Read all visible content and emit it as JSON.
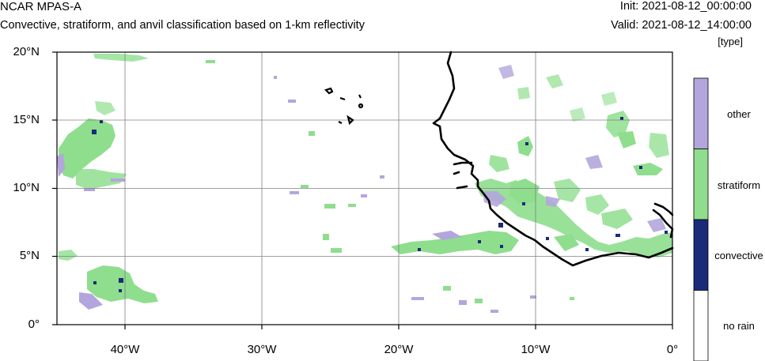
{
  "header": {
    "title": "NCAR MPAS-A",
    "subtitle": "Convective, stratiform, and anvil classification based on 1-km reflectivity",
    "init": "Init: 2021-08-12_00:00:00",
    "valid": "Valid: 2021-08-12_14:00:00",
    "units": "[type]"
  },
  "axes": {
    "lat_labels": [
      "20°N",
      "15°N",
      "10°N",
      "5°N",
      "0°"
    ],
    "lon_labels": [
      "40°W",
      "30°W",
      "20°W",
      "10°W",
      "0°"
    ]
  },
  "colorbar": {
    "classes": [
      {
        "label": "other",
        "color": "#b3a6dc"
      },
      {
        "label": "stratiform",
        "color": "#8ede8e"
      },
      {
        "label": "convective",
        "color": "#1c2a7a"
      },
      {
        "label": "no rain",
        "color": "#ffffff"
      }
    ]
  },
  "colors": {
    "coast": "#000000",
    "grid": "#808080"
  }
}
